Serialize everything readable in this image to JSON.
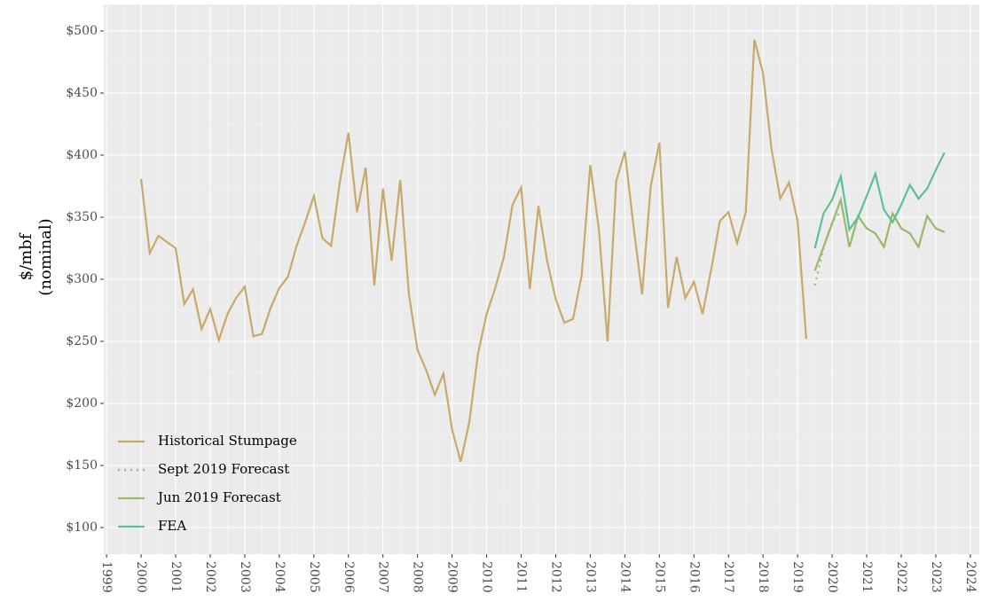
{
  "chart_data": {
    "type": "line",
    "y_label": [
      "$/mbf",
      "(nominal)"
    ],
    "x": [
      2000,
      2000.25,
      2000.5,
      2000.75,
      2001,
      2001.25,
      2001.5,
      2001.75,
      2002,
      2002.25,
      2002.5,
      2002.75,
      2003,
      2003.25,
      2003.5,
      2003.75,
      2004,
      2004.25,
      2004.5,
      2004.75,
      2005,
      2005.25,
      2005.5,
      2005.75,
      2006,
      2006.25,
      2006.5,
      2006.75,
      2007,
      2007.25,
      2007.5,
      2007.75,
      2008,
      2008.25,
      2008.5,
      2008.75,
      2009,
      2009.25,
      2009.5,
      2009.75,
      2010,
      2010.25,
      2010.5,
      2010.75,
      2011,
      2011.25,
      2011.5,
      2011.75,
      2012,
      2012.25,
      2012.5,
      2012.75,
      2013,
      2013.25,
      2013.5,
      2013.75,
      2014,
      2014.25,
      2014.5,
      2014.75,
      2015,
      2015.25,
      2015.5,
      2015.75,
      2016,
      2016.25,
      2016.5,
      2016.75,
      2017,
      2017.25,
      2017.5,
      2017.75,
      2018,
      2018.25,
      2018.5,
      2018.75,
      2019,
      2019.25,
      2019.5,
      2019.75,
      2020,
      2020.25,
      2020.5,
      2020.75,
      2021,
      2021.25,
      2021.5,
      2021.75,
      2022,
      2022.25,
      2022.5,
      2022.75,
      2023,
      2023.25
    ],
    "series": [
      {
        "name": "Historical Stumpage",
        "color": "#c8a96b",
        "linestyle": "solid",
        "values": [
          381,
          321,
          335,
          330,
          325,
          280,
          292,
          260,
          276,
          251,
          272,
          285,
          294,
          254,
          256,
          277,
          293,
          302,
          327,
          346,
          367,
          333,
          327,
          378,
          418,
          354,
          390,
          295,
          373,
          315,
          380,
          288,
          243,
          227,
          207,
          224,
          179,
          153,
          185,
          240,
          272,
          293,
          318,
          360,
          374,
          292,
          359,
          315,
          284,
          265,
          268,
          303,
          392,
          340,
          250,
          379,
          403,
          343,
          288,
          375,
          410,
          277,
          318,
          285,
          298,
          272,
          308,
          347,
          354,
          329,
          354,
          493,
          466,
          404,
          365,
          378,
          347,
          252,
          null,
          null,
          null,
          null,
          null,
          null,
          null,
          null,
          null,
          null,
          null,
          null,
          null,
          null,
          null,
          null
        ]
      },
      {
        "name": "Sept 2019 Forecast",
        "color": "#a9b46a",
        "linestyle": "dotted",
        "values": [
          null,
          null,
          null,
          null,
          null,
          null,
          null,
          null,
          null,
          null,
          null,
          null,
          null,
          null,
          null,
          null,
          null,
          null,
          null,
          null,
          null,
          null,
          null,
          null,
          null,
          null,
          null,
          null,
          null,
          null,
          null,
          null,
          null,
          null,
          null,
          null,
          null,
          null,
          null,
          null,
          null,
          null,
          null,
          null,
          null,
          null,
          null,
          null,
          null,
          null,
          null,
          null,
          null,
          null,
          null,
          null,
          null,
          null,
          null,
          null,
          null,
          null,
          null,
          null,
          null,
          null,
          null,
          null,
          null,
          null,
          null,
          null,
          null,
          null,
          null,
          null,
          null,
          null,
          295,
          325,
          346,
          355,
          null,
          null,
          null,
          null,
          null,
          null,
          null,
          null,
          null,
          null,
          null,
          null
        ]
      },
      {
        "name": "Jun 2019 Forecast",
        "color": "#98b86a",
        "linestyle": "solid",
        "values": [
          null,
          null,
          null,
          null,
          null,
          null,
          null,
          null,
          null,
          null,
          null,
          null,
          null,
          null,
          null,
          null,
          null,
          null,
          null,
          null,
          null,
          null,
          null,
          null,
          null,
          null,
          null,
          null,
          null,
          null,
          null,
          null,
          null,
          null,
          null,
          null,
          null,
          null,
          null,
          null,
          null,
          null,
          null,
          null,
          null,
          null,
          null,
          null,
          null,
          null,
          null,
          null,
          null,
          null,
          null,
          null,
          null,
          null,
          null,
          null,
          null,
          null,
          null,
          null,
          null,
          null,
          null,
          null,
          null,
          null,
          null,
          null,
          null,
          null,
          null,
          null,
          null,
          null,
          307,
          326,
          345,
          364,
          326,
          351,
          341,
          337,
          326,
          353,
          341,
          337,
          326,
          351,
          341,
          338
        ]
      },
      {
        "name": "FEA",
        "color": "#5cc093",
        "linestyle": "solid",
        "values": [
          null,
          null,
          null,
          null,
          null,
          null,
          null,
          null,
          null,
          null,
          null,
          null,
          null,
          null,
          null,
          null,
          null,
          null,
          null,
          null,
          null,
          null,
          null,
          null,
          null,
          null,
          null,
          null,
          null,
          null,
          null,
          null,
          null,
          null,
          null,
          null,
          null,
          null,
          null,
          null,
          null,
          null,
          null,
          null,
          null,
          null,
          null,
          null,
          null,
          null,
          null,
          null,
          null,
          null,
          null,
          null,
          null,
          null,
          null,
          null,
          null,
          null,
          null,
          null,
          null,
          null,
          null,
          null,
          null,
          null,
          null,
          null,
          null,
          null,
          null,
          null,
          null,
          null,
          325,
          353,
          364,
          383,
          340,
          350,
          367,
          385,
          356,
          346,
          360,
          376,
          365,
          373,
          388,
          402
        ]
      }
    ],
    "xlim": [
      1998.92,
      2024.26
    ],
    "xticks": [
      1999,
      2000,
      2001,
      2002,
      2003,
      2004,
      2005,
      2006,
      2007,
      2008,
      2009,
      2010,
      2011,
      2012,
      2013,
      2014,
      2015,
      2016,
      2017,
      2018,
      2019,
      2020,
      2021,
      2022,
      2023,
      2024
    ],
    "ylim": [
      78.6,
      521.4
    ],
    "yticks": [
      {
        "value": 100,
        "label": "$100"
      },
      {
        "value": 150,
        "label": "$150"
      },
      {
        "value": 200,
        "label": "$200"
      },
      {
        "value": 250,
        "label": "$250"
      },
      {
        "value": 300,
        "label": "$300"
      },
      {
        "value": 350,
        "label": "$350"
      },
      {
        "value": 400,
        "label": "$400"
      },
      {
        "value": 450,
        "label": "$450"
      },
      {
        "value": 500,
        "label": "$500"
      }
    ],
    "grid": true,
    "legend_position": "bottom-left"
  }
}
